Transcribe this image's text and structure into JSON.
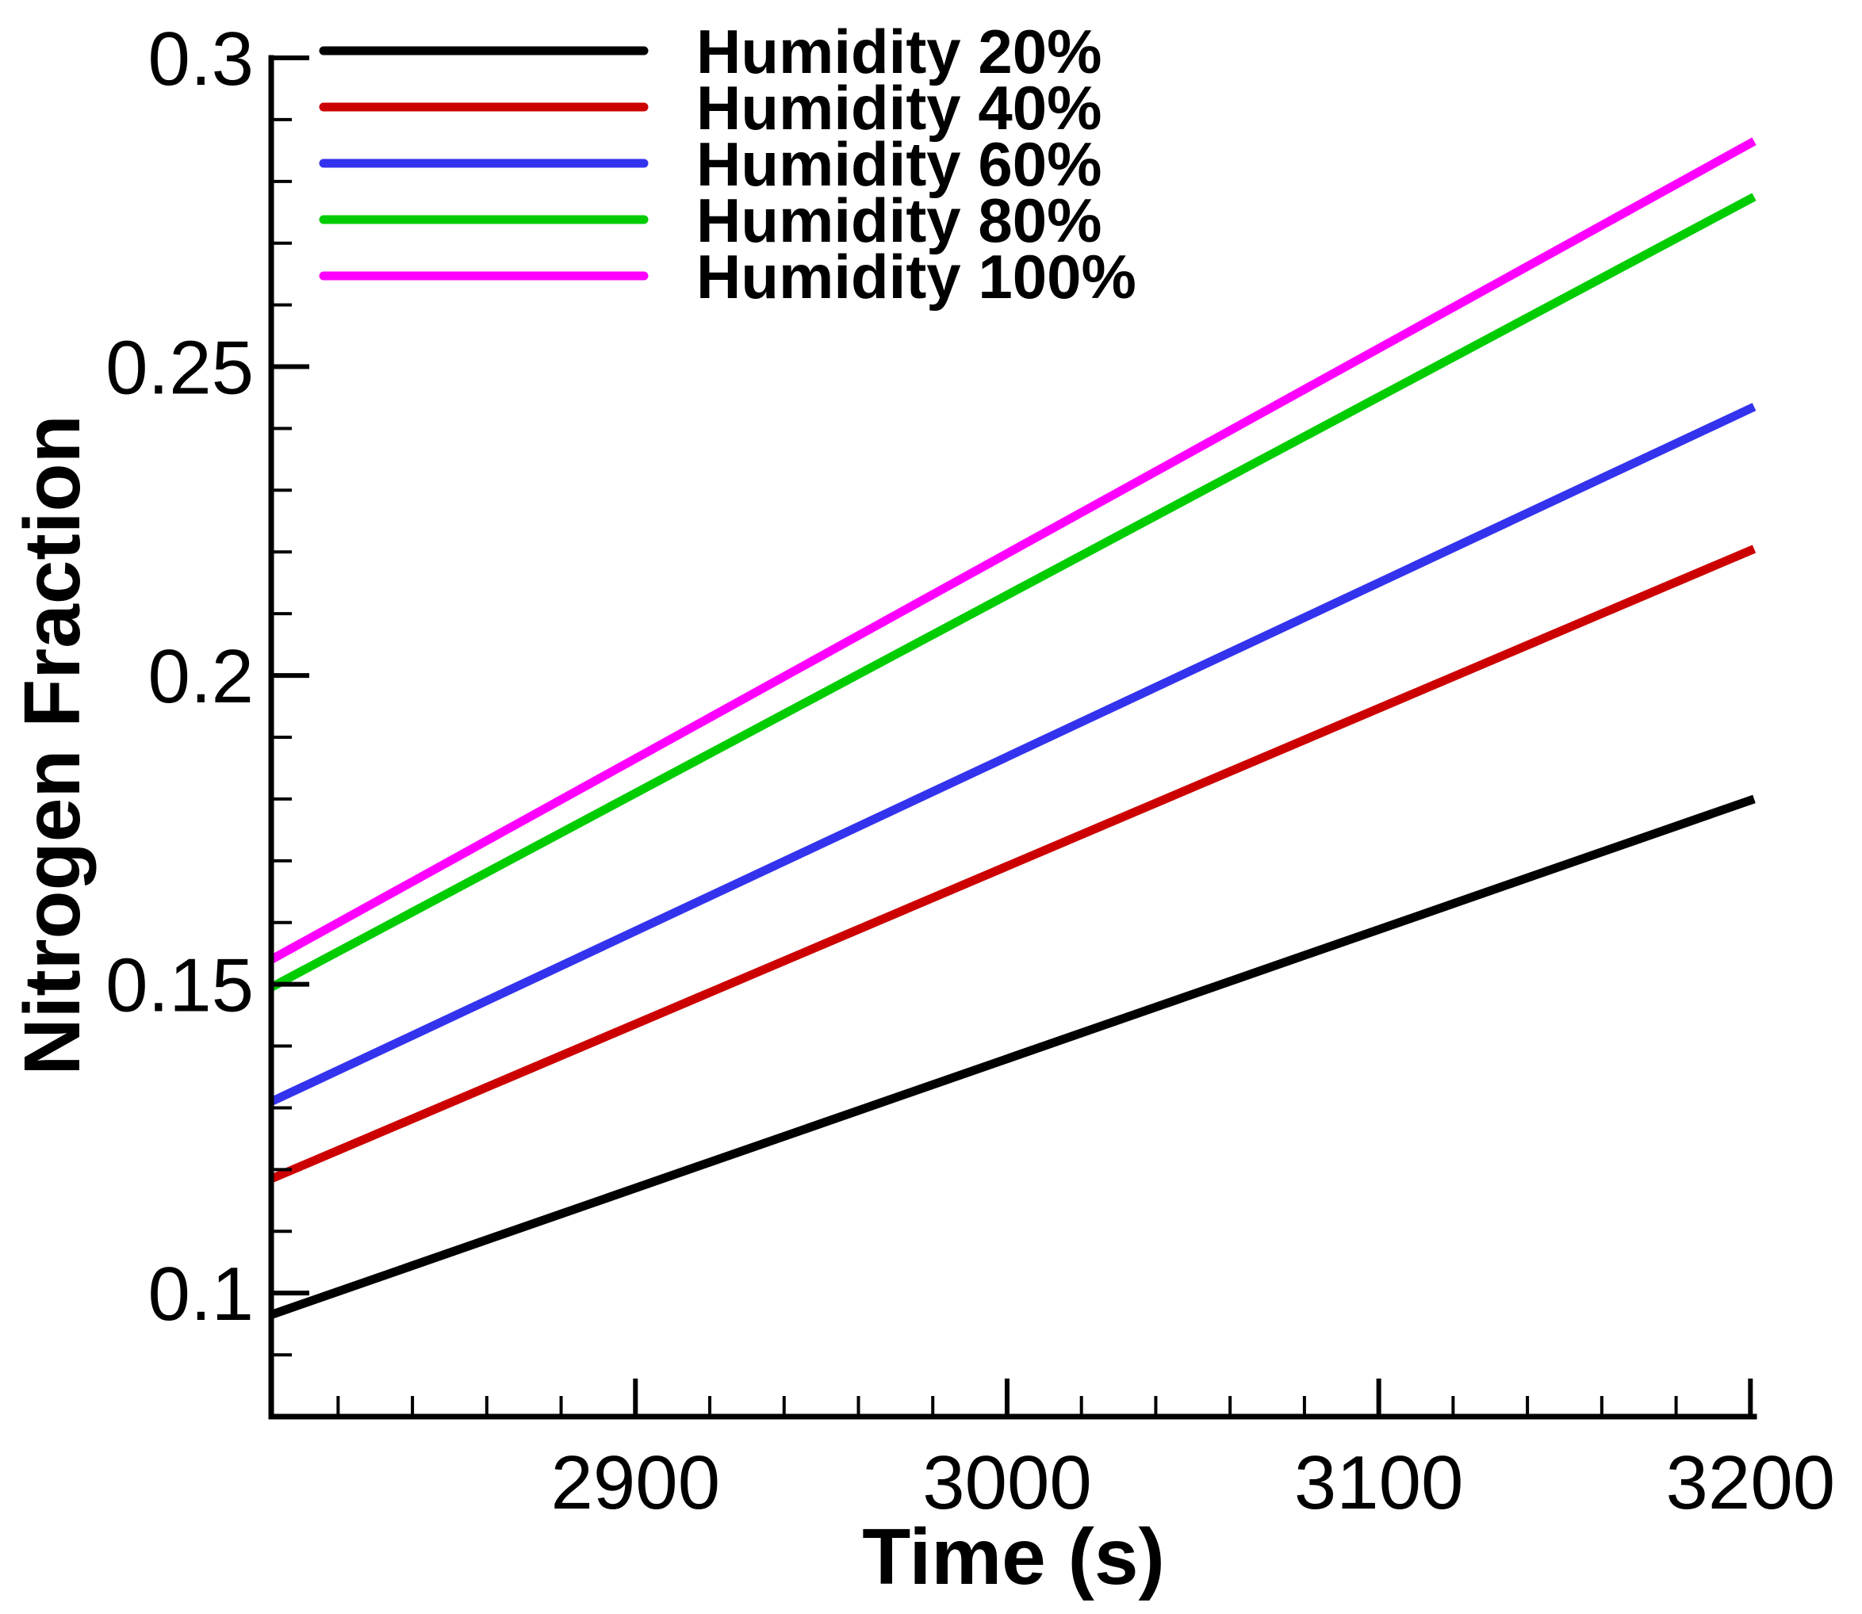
{
  "chart_data": {
    "type": "line",
    "title": "",
    "xlabel": "Time (s)",
    "ylabel": "Nitrogen Fraction",
    "xlim": [
      2802,
      3201
    ],
    "ylim": [
      0.08,
      0.3
    ],
    "x_ticks": [
      2900,
      3000,
      3100,
      3200
    ],
    "x_tick_labels": [
      "2900",
      "3000",
      "3100",
      "3200"
    ],
    "y_ticks": [
      0.1,
      0.15,
      0.2,
      0.25,
      0.3
    ],
    "y_tick_labels": [
      "0.1",
      "0.15",
      "0.2",
      "0.25",
      "0.3"
    ],
    "legend_position": "top-left",
    "grid": false,
    "series": [
      {
        "name": "Humidity 20%",
        "color": "#000000",
        "x": [
          2802,
          3201
        ],
        "y": [
          0.0965,
          0.18
        ]
      },
      {
        "name": "Humidity 40%",
        "color": "#cc0000",
        "x": [
          2802,
          3201
        ],
        "y": [
          0.1185,
          0.2205
        ]
      },
      {
        "name": "Humidity 60%",
        "color": "#3333ee",
        "x": [
          2802,
          3201
        ],
        "y": [
          0.131,
          0.2435
        ]
      },
      {
        "name": "Humidity 80%",
        "color": "#00cc00",
        "x": [
          2802,
          3201
        ],
        "y": [
          0.1495,
          0.2775
        ]
      },
      {
        "name": "Humidity 100%",
        "color": "#ff00ff",
        "x": [
          2802,
          3201
        ],
        "y": [
          0.154,
          0.2865
        ]
      }
    ]
  }
}
